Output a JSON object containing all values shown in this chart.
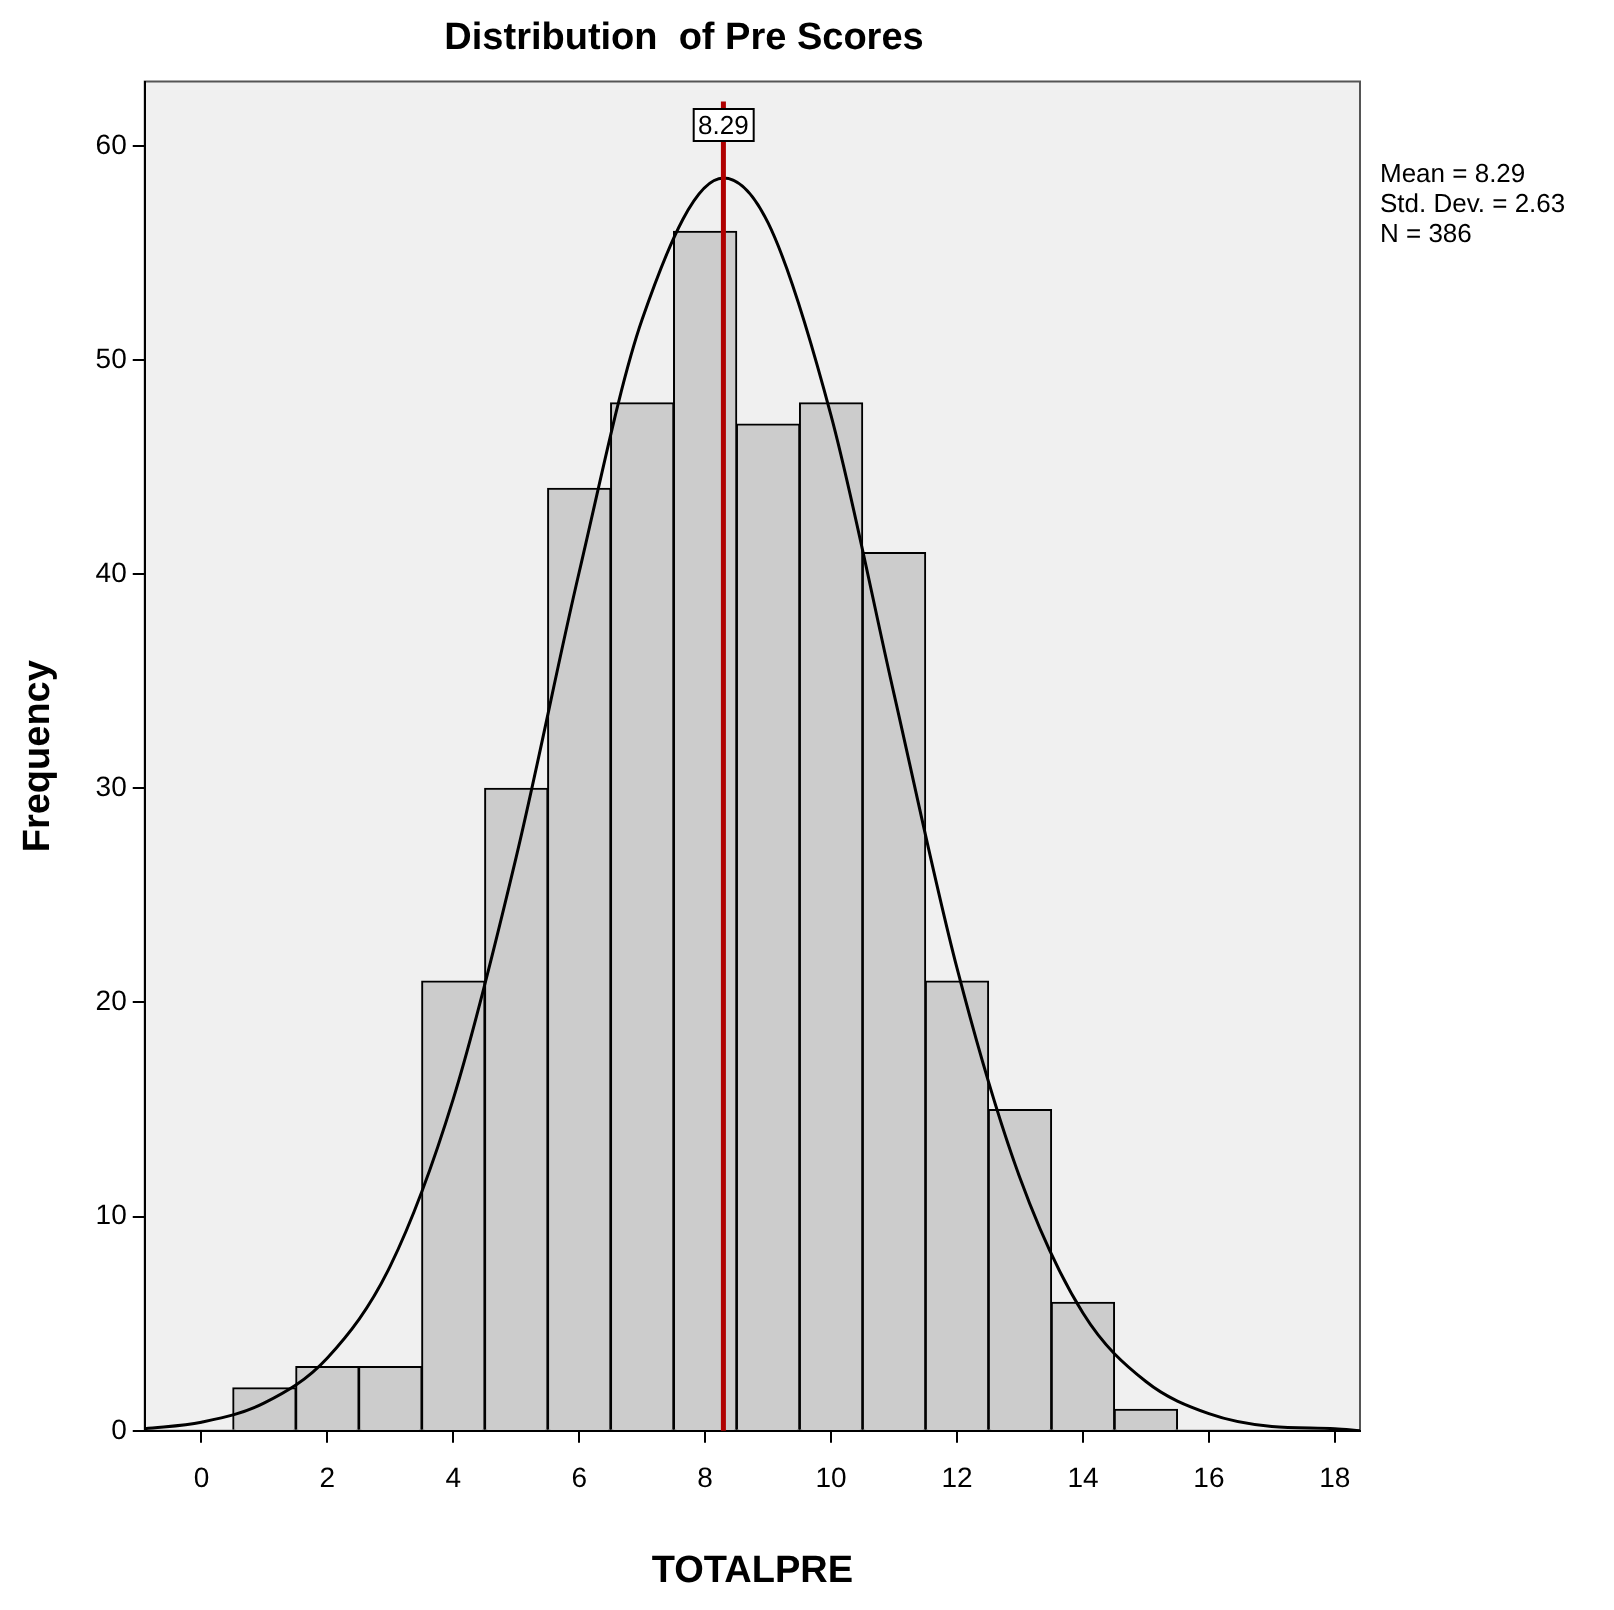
{
  "chart_data": {
    "type": "histogram",
    "title": "Distribution  of Pre Scores",
    "xlabel": "TOTALPRE",
    "ylabel": "Frequency",
    "bins": [
      0.5,
      1.5,
      2.5,
      3.5,
      4.5,
      5.5,
      6.5,
      7.5,
      8.5,
      9.5,
      10.5,
      11.5,
      12.5,
      13.5,
      14.5,
      15.5
    ],
    "values": [
      2,
      3,
      3,
      21,
      30,
      44,
      48,
      56,
      47,
      48,
      41,
      21,
      15,
      6,
      1
    ],
    "color": "#cccccc",
    "series": [
      {
        "type": "line",
        "color": "#000000",
        "x": [
          -0.9,
          0,
          1,
          2,
          3,
          4,
          5,
          6,
          7,
          8.29,
          9,
          10,
          11,
          12,
          13,
          14,
          15,
          16,
          17,
          18,
          18.4
        ],
        "values": [
          0.1,
          0.4,
          1.3,
          3.4,
          7.7,
          15.5,
          26.8,
          40.1,
          51.9,
          58.5,
          56.4,
          47.4,
          34.4,
          21.6,
          11.8,
          5.5,
          2.3,
          0.8,
          0.2,
          0.1,
          0
        ]
      }
    ],
    "xlim": [
      -0.9,
      18.4
    ],
    "xticks": [
      0,
      2,
      4,
      6,
      8,
      10,
      12,
      14,
      16,
      18
    ],
    "ylim": [
      0,
      63
    ],
    "yticks": [
      0,
      10,
      20,
      30,
      40,
      50,
      60
    ],
    "grid": false,
    "legend": false,
    "marker": "none",
    "line_style": "solid",
    "ref_lines": [
      {
        "axis": "x",
        "value": 8.29,
        "label": "8.29",
        "color": "#b00000"
      }
    ],
    "annotations": [
      "Mean = 8.29",
      "Std. Dev. = 2.63",
      "N = 386"
    ]
  }
}
